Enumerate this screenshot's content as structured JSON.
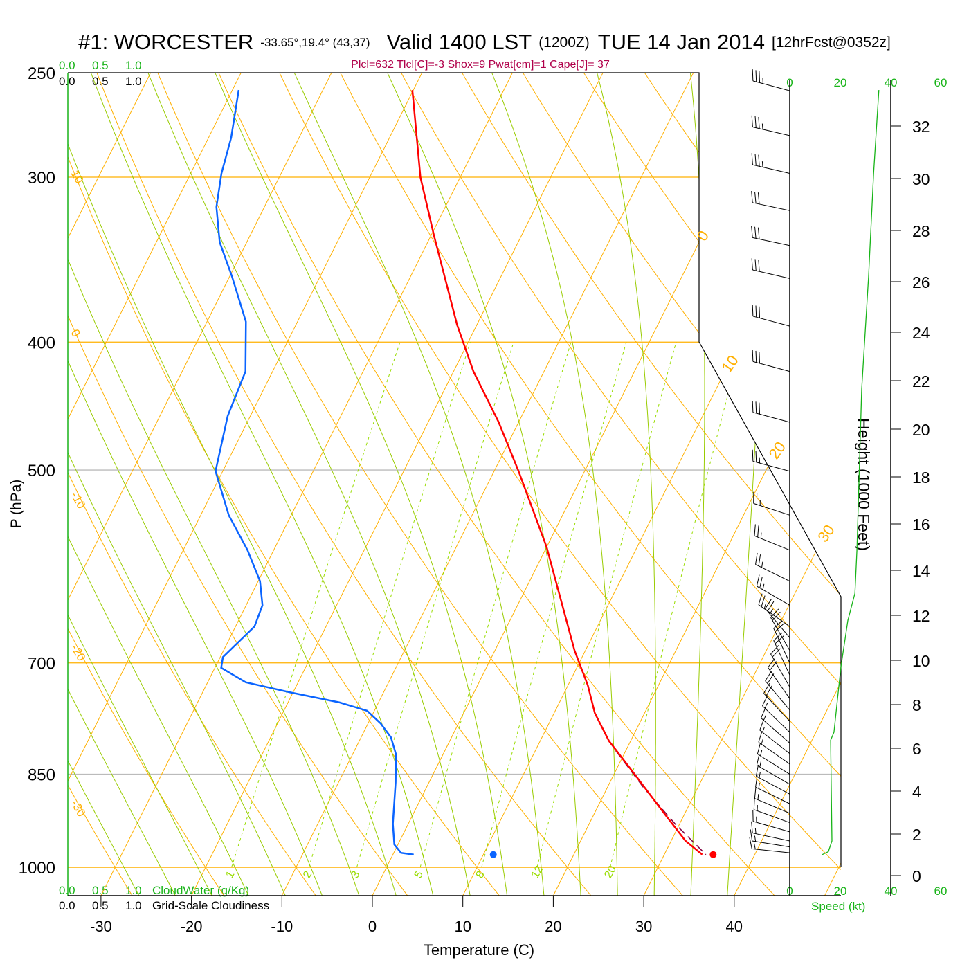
{
  "header": {
    "station": "#1: WORCESTER",
    "coords": "-33.65°,19.4° (43,37)",
    "valid": "Valid 1400 LST",
    "zulu": "(1200Z)",
    "date": "TUE 14 Jan 2014",
    "forecast": "[12hrFcst@0352z]",
    "indices": "Plcl=632 Tlcl[C]=-3 Shox=9 Pwat[cm]=1 Cape[J]= 37"
  },
  "cloud_scales": {
    "cloudwater_ticks": [
      "0.0",
      "0.5",
      "1.0"
    ],
    "cloudwater_label": "CloudWater (g/Kg)",
    "cloudiness_ticks": [
      "0.0",
      "0.5",
      "1.0"
    ],
    "cloudiness_label": "Grid-Scale Cloudiness"
  },
  "speed_axis": {
    "ticks": [
      "0",
      "20",
      "40",
      "60"
    ],
    "label": "Speed (kt)"
  },
  "height_axis": {
    "label": "Height (1000 Feet)",
    "ticks": [
      "32",
      "30",
      "28",
      "26",
      "24",
      "22",
      "20",
      "18",
      "16",
      "14",
      "12",
      "10",
      "8",
      "6",
      "4",
      "2",
      "0"
    ]
  },
  "colors": {
    "temperature": "#ff0000",
    "dewpoint": "#0a64ff",
    "isotherm": "#ffb000",
    "moist": "#99cc00",
    "mixing": "#99dd00",
    "speed": "#18b418",
    "parcel": "#800040",
    "indices": "#b0004a"
  },
  "chart_data": {
    "type": "skew-t",
    "title": "#1: WORCESTER Valid 1400 LST TUE 14 Jan 2014",
    "xlabel": "Temperature (C)",
    "ylabel": "P (hPa)",
    "x_ticks": [
      "-30",
      "-20",
      "-10",
      "0",
      "10",
      "20",
      "30",
      "40"
    ],
    "x_tick_values": [
      -30,
      -20,
      -10,
      0,
      10,
      20,
      30,
      40
    ],
    "p_ticks": [
      "250",
      "300",
      "400",
      "500",
      "700",
      "850",
      "1000"
    ],
    "p_tick_values": [
      250,
      300,
      400,
      500,
      700,
      850,
      1000
    ],
    "p_range": [
      250,
      1000
    ],
    "dry_adiabat_labels": [
      "10",
      "0",
      "-10",
      "-20",
      "-30"
    ],
    "isotherm_labels": [
      "0",
      "10",
      "20",
      "30"
    ],
    "mixing_ratio_labels": [
      "1",
      "2",
      "3",
      "5",
      "8",
      "12",
      "20"
    ],
    "temperature": [
      [
        257.7,
        -40.1
      ],
      [
        300,
        -34.4
      ],
      [
        332,
        -29.7
      ],
      [
        388,
        -22.2
      ],
      [
        421,
        -17.8
      ],
      [
        460,
        -12.2
      ],
      [
        501,
        -7.3
      ],
      [
        572,
        0.0
      ],
      [
        685,
        8.8
      ],
      [
        728,
        12.2
      ],
      [
        764,
        14.5
      ],
      [
        802,
        17.6
      ],
      [
        847,
        22.0
      ],
      [
        910,
        27.7
      ],
      [
        955,
        31.6
      ],
      [
        978,
        34.2
      ]
    ],
    "dewpoint": [
      [
        257.7,
        -59.3
      ],
      [
        280,
        -57.5
      ],
      [
        298,
        -56.6
      ],
      [
        316,
        -55.3
      ],
      [
        336,
        -53.0
      ],
      [
        357,
        -49.7
      ],
      [
        386,
        -45.7
      ],
      [
        421,
        -43.0
      ],
      [
        455,
        -42.5
      ],
      [
        501,
        -40.8
      ],
      [
        541,
        -36.9
      ],
      [
        575,
        -32.9
      ],
      [
        607,
        -29.8
      ],
      [
        633,
        -28.2
      ],
      [
        657,
        -27.9
      ],
      [
        693,
        -29.7
      ],
      [
        706,
        -29.3
      ],
      [
        724,
        -25.8
      ],
      [
        737,
        -20.3
      ],
      [
        750,
        -14.3
      ],
      [
        761,
        -10.8
      ],
      [
        778,
        -8.6
      ],
      [
        797,
        -6.7
      ],
      [
        821,
        -5.2
      ],
      [
        862,
        -3.7
      ],
      [
        927,
        -1.7
      ],
      [
        961,
        -0.4
      ],
      [
        975,
        0.8
      ],
      [
        978,
        2.3
      ]
    ],
    "parcel": [
      [
        816,
        18.9
      ],
      [
        870,
        24.0
      ],
      [
        927,
        29.5
      ],
      [
        978,
        34.6
      ]
    ],
    "surface_temperature": [
      978,
      35.4
    ],
    "surface_dewpoint": [
      978,
      11.1
    ],
    "wind_speed": [
      [
        257.7,
        35.3
      ],
      [
        298,
        33.2
      ],
      [
        357,
        31.2
      ],
      [
        434,
        28.5
      ],
      [
        575,
        26.6
      ],
      [
        620,
        25.8
      ],
      [
        650,
        23.0
      ],
      [
        704,
        20.3
      ],
      [
        790,
        17.5
      ],
      [
        801,
        16.2
      ],
      [
        955,
        16.7
      ],
      [
        973,
        15.3
      ],
      [
        978,
        12.9
      ]
    ],
    "wind_barbs": [
      [
        258,
        285,
        35
      ],
      [
        279,
        283,
        33
      ],
      [
        298,
        283,
        33
      ],
      [
        318,
        282,
        32
      ],
      [
        338,
        282,
        32
      ],
      [
        358,
        283,
        31
      ],
      [
        389,
        285,
        30
      ],
      [
        421,
        285,
        29
      ],
      [
        460,
        285,
        28
      ],
      [
        501,
        285,
        27
      ],
      [
        541,
        288,
        27
      ],
      [
        575,
        292,
        26
      ],
      [
        607,
        296,
        26
      ],
      [
        633,
        300,
        25
      ],
      [
        657,
        305,
        24
      ],
      [
        670,
        320,
        23
      ],
      [
        685,
        330,
        22
      ],
      [
        700,
        335,
        21
      ],
      [
        715,
        335,
        20
      ],
      [
        730,
        330,
        19
      ],
      [
        745,
        325,
        18
      ],
      [
        760,
        320,
        18
      ],
      [
        775,
        317,
        18
      ],
      [
        790,
        314,
        17
      ],
      [
        805,
        311,
        17
      ],
      [
        820,
        308,
        17
      ],
      [
        835,
        305,
        17
      ],
      [
        850,
        302,
        17
      ],
      [
        865,
        300,
        17
      ],
      [
        880,
        298,
        17
      ],
      [
        895,
        296,
        17
      ],
      [
        910,
        293,
        17
      ],
      [
        925,
        290,
        17
      ],
      [
        940,
        286,
        16
      ],
      [
        955,
        282,
        16
      ],
      [
        965,
        279,
        15
      ],
      [
        975,
        276,
        13
      ]
    ]
  }
}
